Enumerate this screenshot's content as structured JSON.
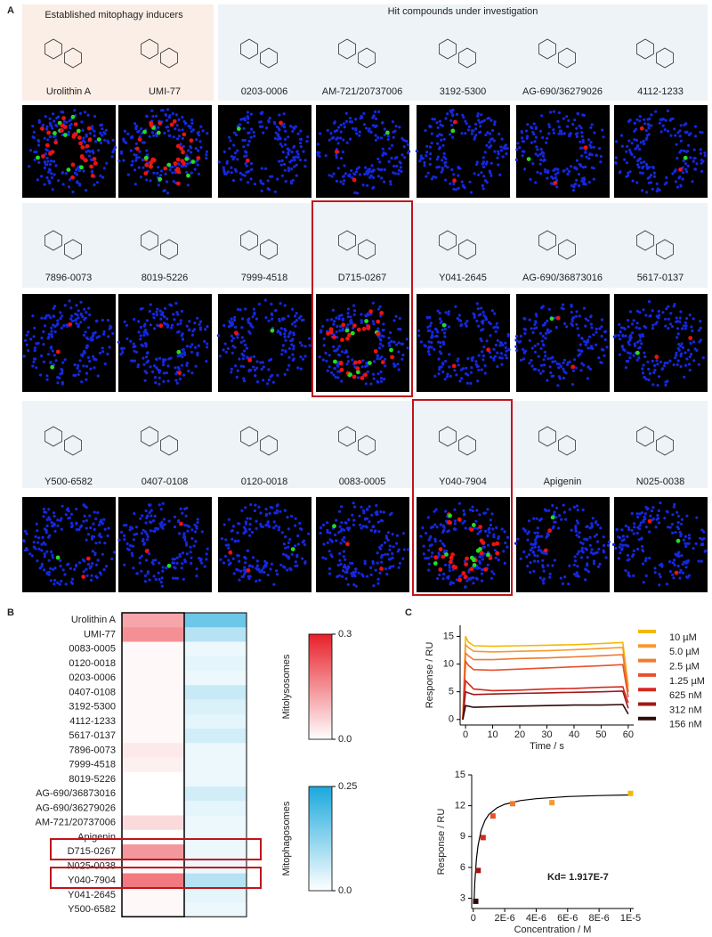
{
  "panel_labels": [
    "A",
    "B",
    "C"
  ],
  "panel_a": {
    "groups": [
      "Established mitophagy inducers",
      "Hit compounds under investigation"
    ],
    "rows": [
      [
        "Urolithin A",
        "UMI-77",
        "0203-0006",
        "AM-721/20737006",
        "3192-5300",
        "AG-690/36279026",
        "4112-1233"
      ],
      [
        "7896-0073",
        "8019-5226",
        "7999-4518",
        "D715-0267",
        "Y041-2645",
        "AG-690/36873016",
        "5617-0137"
      ],
      [
        "Y500-6582",
        "0407-0108",
        "0120-0018",
        "0083-0005",
        "Y040-7904",
        "Apigenin",
        "N025-0038"
      ]
    ]
  },
  "chart_data": [
    {
      "type": "heatmap",
      "categories": [
        "Urolithin A",
        "UMI-77",
        "0083-0005",
        "0120-0018",
        "0203-0006",
        "0407-0108",
        "3192-5300",
        "4112-1233",
        "5617-0137",
        "7896-0073",
        "7999-4518",
        "8019-5226",
        "AG-690/36873016",
        "AG-690/36279026",
        "AM-721/20737006",
        "Apigenin",
        "D715-0267",
        "N025-0038",
        "Y040-7904",
        "Y041-2645",
        "Y500-6582"
      ],
      "series": [
        {
          "name": "Mitolysosomes",
          "color": "#e8202a",
          "vlim": [
            0,
            0.3
          ],
          "ticks": [
            {
              "value": 0,
              "label": "0.0"
            },
            0.3
          ],
          "values": [
            0.12,
            0.15,
            0.01,
            0.01,
            0.01,
            0.01,
            0.01,
            0.01,
            0.01,
            0.03,
            0.02,
            0.0,
            0.0,
            0.0,
            0.05,
            0.0,
            0.14,
            0.01,
            0.18,
            0.01,
            0.01
          ]
        },
        {
          "name": "Mitophagosomes",
          "color": "#1aa8dc",
          "vlim": [
            0,
            0.25
          ],
          "ticks": [
            {
              "value": 0,
              "label": "0.0"
            },
            0.25
          ],
          "values": [
            0.16,
            0.08,
            0.02,
            0.03,
            0.02,
            0.06,
            0.04,
            0.03,
            0.05,
            0.02,
            0.02,
            0.02,
            0.05,
            0.03,
            0.02,
            0.02,
            0.02,
            0.02,
            0.08,
            0.03,
            0.02
          ]
        }
      ]
    },
    {
      "type": "line",
      "xlabel": "Time / s",
      "ylabel": "Response / RU",
      "x": [
        -1,
        0,
        1,
        3,
        10,
        20,
        30,
        40,
        50,
        58,
        60
      ],
      "xlim": [
        -2,
        62
      ],
      "xticks": [
        0,
        10,
        20,
        30,
        40,
        50,
        60
      ],
      "ylim": [
        -1,
        17
      ],
      "yticks": [
        0,
        5,
        10,
        15
      ],
      "series": [
        {
          "name": "10 µM",
          "color": "#f5b800",
          "values": [
            0,
            15,
            14,
            13.3,
            13.2,
            13.3,
            13.4,
            13.5,
            13.7,
            13.9,
            6
          ]
        },
        {
          "name": "5.0 µM",
          "color": "#f59a30",
          "values": [
            0,
            13.5,
            13,
            12.3,
            12.2,
            12.3,
            12.4,
            12.6,
            12.8,
            13,
            5
          ]
        },
        {
          "name": "2.5 µM",
          "color": "#f07a30",
          "values": [
            0,
            12,
            11.5,
            10.8,
            10.8,
            11,
            11.1,
            11.3,
            11.5,
            11.7,
            5
          ]
        },
        {
          "name": "1.25 µM",
          "color": "#e8502a",
          "values": [
            0,
            10.5,
            9.8,
            9,
            8.9,
            9.1,
            9.3,
            9.5,
            9.7,
            9.9,
            4
          ]
        },
        {
          "name": "625 nM",
          "color": "#d42a20",
          "values": [
            0,
            7,
            6.5,
            5.5,
            5.2,
            5.3,
            5.5,
            5.6,
            5.8,
            5.9,
            3
          ]
        },
        {
          "name": "312 nM",
          "color": "#a01818",
          "values": [
            0,
            5,
            4.8,
            4.5,
            4.6,
            4.7,
            4.8,
            4.9,
            5,
            5.1,
            2
          ]
        },
        {
          "name": "156 nM",
          "color": "#300808",
          "values": [
            0,
            2.5,
            2.4,
            2.2,
            2.3,
            2.4,
            2.5,
            2.6,
            2.6,
            2.7,
            1
          ]
        }
      ]
    },
    {
      "type": "scatter",
      "xlabel": "Concentration / M",
      "ylabel": "Response / RU",
      "annotation": "Kd= 1.917E-7",
      "xlim": [
        -1e-07,
        1.02e-05
      ],
      "xticks": [
        0,
        {
          "value": 2e-06,
          "label": "2E-6"
        },
        {
          "value": 4e-06,
          "label": "4E-6"
        },
        {
          "value": 6e-06,
          "label": "6E-6"
        },
        {
          "value": 8e-06,
          "label": "8E-6"
        },
        {
          "value": 1e-05,
          "label": "1E-5"
        }
      ],
      "ylim": [
        2,
        15
      ],
      "yticks": [
        3,
        6,
        9,
        12,
        15
      ],
      "x": [
        1.56e-07,
        3.12e-07,
        6.25e-07,
        1.25e-06,
        2.5e-06,
        5e-06,
        1e-05
      ],
      "values": [
        2.7,
        5.7,
        8.9,
        11,
        12.2,
        12.3,
        13.2
      ],
      "colors": [
        "#300808",
        "#a01818",
        "#d42a20",
        "#e8502a",
        "#f07a30",
        "#f59a30",
        "#f5b800"
      ],
      "lines": [
        {
          "color": "#000000",
          "x": [
            5e-08,
            1e-07,
            2e-07,
            3e-07,
            5e-07,
            7.5e-07,
            1e-06,
            1.5e-06,
            2e-06,
            3e-06,
            4e-06,
            6e-06,
            8e-06,
            1e-05
          ],
          "values": [
            2.75,
            4.56,
            6.79,
            8.11,
            9.61,
            10.59,
            11.16,
            11.79,
            12.14,
            12.5,
            12.69,
            12.89,
            12.99,
            13.05
          ]
        }
      ]
    }
  ]
}
